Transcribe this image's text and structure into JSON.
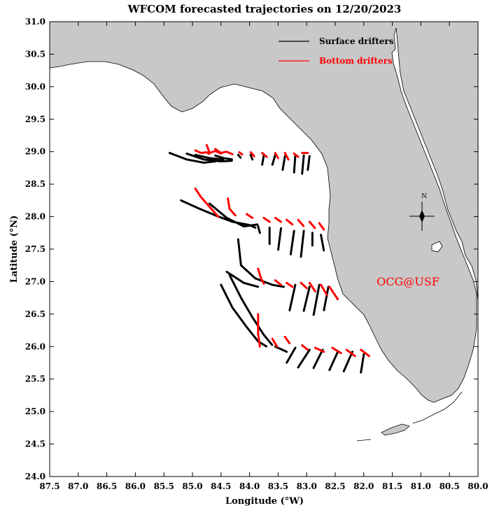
{
  "title": "WFCOM forecasted trajectories on 12/20/2023",
  "xlabel": "Longitude (°W)",
  "ylabel": "Latitude (°N)",
  "x_ticks": [
    "87.5",
    "87.0",
    "86.5",
    "86.0",
    "85.5",
    "85.0",
    "84.5",
    "84.0",
    "83.5",
    "83.0",
    "82.5",
    "82.0",
    "81.5",
    "81.0",
    "80.5",
    "80.0"
  ],
  "y_ticks": [
    "31.0",
    "30.5",
    "30.0",
    "29.5",
    "29.0",
    "28.5",
    "28.0",
    "27.5",
    "27.0",
    "26.5",
    "26.0",
    "25.5",
    "25.0",
    "24.5",
    "24.0"
  ],
  "legend": {
    "surface": {
      "label": "Surface drifters",
      "color": "#000000"
    },
    "bottom": {
      "label": "Bottom drifters",
      "color": "#ff0000"
    }
  },
  "credit": "OCG@USF",
  "compass": "N",
  "colors": {
    "land": "#c8c8c8",
    "water": "#ffffff",
    "accent": "#ff0000"
  },
  "chart_data": {
    "type": "map-trajectories",
    "xlim": [
      -87.5,
      -80.0
    ],
    "ylim": [
      24.0,
      31.0
    ],
    "surface_tracks": [
      [
        [
          -85.4,
          28.98
        ],
        [
          -85.1,
          28.88
        ],
        [
          -84.8,
          28.83
        ],
        [
          -84.6,
          28.85
        ]
      ],
      [
        [
          -85.1,
          28.97
        ],
        [
          -84.8,
          28.88
        ],
        [
          -84.5,
          28.85
        ],
        [
          -84.3,
          28.86
        ]
      ],
      [
        [
          -84.95,
          28.95
        ],
        [
          -84.7,
          28.9
        ],
        [
          -84.45,
          28.88
        ]
      ],
      [
        [
          -84.6,
          28.94
        ],
        [
          -84.45,
          28.9
        ],
        [
          -84.3,
          28.88
        ]
      ],
      [
        [
          -84.2,
          28.95
        ],
        [
          -84.15,
          28.9
        ]
      ],
      [
        [
          -83.98,
          28.95
        ],
        [
          -83.95,
          28.88
        ]
      ],
      [
        [
          -83.75,
          28.94
        ],
        [
          -83.78,
          28.8
        ]
      ],
      [
        [
          -83.55,
          28.95
        ],
        [
          -83.6,
          28.8
        ]
      ],
      [
        [
          -83.38,
          28.93
        ],
        [
          -83.42,
          28.72
        ]
      ],
      [
        [
          -83.2,
          28.93
        ],
        [
          -83.22,
          28.68
        ]
      ],
      [
        [
          -83.05,
          28.94
        ],
        [
          -83.08,
          28.66
        ]
      ],
      [
        [
          -82.95,
          28.93
        ],
        [
          -82.98,
          28.72
        ]
      ],
      [
        [
          -85.2,
          28.25
        ],
        [
          -84.9,
          28.13
        ],
        [
          -84.6,
          28.02
        ],
        [
          -84.3,
          27.92
        ],
        [
          -84.0,
          27.87
        ],
        [
          -83.9,
          27.83
        ]
      ],
      [
        [
          -84.7,
          28.2
        ],
        [
          -84.4,
          27.98
        ],
        [
          -84.1,
          27.85
        ],
        [
          -83.85,
          27.88
        ]
      ],
      [
        [
          -83.85,
          27.85
        ],
        [
          -83.82,
          27.75
        ]
      ],
      [
        [
          -83.65,
          27.83
        ],
        [
          -83.65,
          27.58
        ]
      ],
      [
        [
          -83.45,
          27.82
        ],
        [
          -83.5,
          27.48
        ]
      ],
      [
        [
          -83.22,
          27.78
        ],
        [
          -83.28,
          27.42
        ]
      ],
      [
        [
          -83.05,
          27.78
        ],
        [
          -83.1,
          27.38
        ]
      ],
      [
        [
          -82.9,
          27.75
        ],
        [
          -82.9,
          27.55
        ]
      ],
      [
        [
          -82.75,
          27.72
        ],
        [
          -82.7,
          27.48
        ]
      ],
      [
        [
          -84.2,
          27.65
        ],
        [
          -84.15,
          27.25
        ],
        [
          -83.9,
          27.05
        ],
        [
          -83.6,
          26.95
        ],
        [
          -83.4,
          26.92
        ]
      ],
      [
        [
          -84.4,
          27.15
        ],
        [
          -84.1,
          26.98
        ],
        [
          -83.85,
          26.92
        ]
      ],
      [
        [
          -83.2,
          26.95
        ],
        [
          -83.3,
          26.55
        ]
      ],
      [
        [
          -82.95,
          26.92
        ],
        [
          -83.05,
          26.55
        ]
      ],
      [
        [
          -82.78,
          26.95
        ],
        [
          -82.88,
          26.48
        ]
      ],
      [
        [
          -82.62,
          26.92
        ],
        [
          -82.7,
          26.55
        ]
      ],
      [
        [
          -84.5,
          26.95
        ],
        [
          -84.3,
          26.6
        ],
        [
          -84.05,
          26.3
        ],
        [
          -83.85,
          26.08
        ],
        [
          -83.7,
          26.0
        ]
      ],
      [
        [
          -84.35,
          27.1
        ],
        [
          -84.15,
          26.75
        ],
        [
          -83.95,
          26.45
        ],
        [
          -83.75,
          26.18
        ],
        [
          -83.6,
          26.02
        ]
      ],
      [
        [
          -83.55,
          26.0
        ],
        [
          -83.35,
          25.92
        ]
      ],
      [
        [
          -83.2,
          25.98
        ],
        [
          -83.35,
          25.75
        ]
      ],
      [
        [
          -82.95,
          25.95
        ],
        [
          -83.15,
          25.68
        ]
      ],
      [
        [
          -82.72,
          25.95
        ],
        [
          -82.88,
          25.67
        ]
      ],
      [
        [
          -82.45,
          25.93
        ],
        [
          -82.6,
          25.64
        ]
      ],
      [
        [
          -82.2,
          25.92
        ],
        [
          -82.35,
          25.62
        ]
      ],
      [
        [
          -82.0,
          25.88
        ],
        [
          -82.05,
          25.6
        ]
      ]
    ],
    "bottom_tracks": [
      [
        [
          -84.95,
          29.02
        ],
        [
          -84.85,
          28.98
        ],
        [
          -84.75,
          28.99
        ],
        [
          -84.7,
          28.96
        ]
      ],
      [
        [
          -84.75,
          29.1
        ],
        [
          -84.7,
          28.98
        ],
        [
          -84.6,
          29.01
        ],
        [
          -84.5,
          28.97
        ]
      ],
      [
        [
          -84.6,
          29.04
        ],
        [
          -84.5,
          28.98
        ],
        [
          -84.4,
          29.0
        ]
      ],
      [
        [
          -84.38,
          28.99
        ],
        [
          -84.3,
          28.96
        ]
      ],
      [
        [
          -84.18,
          28.99
        ],
        [
          -84.12,
          28.95
        ]
      ],
      [
        [
          -83.98,
          28.99
        ],
        [
          -83.92,
          28.93
        ]
      ],
      [
        [
          -83.78,
          28.98
        ],
        [
          -83.7,
          28.92
        ]
      ],
      [
        [
          -83.55,
          28.98
        ],
        [
          -83.5,
          28.9
        ]
      ],
      [
        [
          -83.38,
          28.98
        ],
        [
          -83.32,
          28.88
        ]
      ],
      [
        [
          -83.22,
          28.97
        ],
        [
          -83.15,
          28.92
        ]
      ],
      [
        [
          -83.08,
          28.98
        ],
        [
          -82.98,
          28.98
        ]
      ],
      [
        [
          -84.95,
          28.43
        ],
        [
          -84.85,
          28.3
        ],
        [
          -84.7,
          28.15
        ],
        [
          -84.55,
          28.0
        ]
      ],
      [
        [
          -84.38,
          28.28
        ],
        [
          -84.35,
          28.12
        ],
        [
          -84.25,
          28.02
        ]
      ],
      [
        [
          -84.05,
          28.04
        ],
        [
          -83.95,
          27.98
        ]
      ],
      [
        [
          -83.75,
          27.98
        ],
        [
          -83.65,
          27.92
        ]
      ],
      [
        [
          -83.55,
          27.98
        ],
        [
          -83.45,
          27.92
        ]
      ],
      [
        [
          -83.35,
          27.95
        ],
        [
          -83.25,
          27.88
        ]
      ],
      [
        [
          -83.15,
          27.95
        ],
        [
          -83.05,
          27.85
        ]
      ],
      [
        [
          -82.95,
          27.92
        ],
        [
          -82.85,
          27.82
        ]
      ],
      [
        [
          -82.78,
          27.9
        ],
        [
          -82.7,
          27.8
        ]
      ],
      [
        [
          -83.85,
          27.2
        ],
        [
          -83.8,
          27.05
        ],
        [
          -83.75,
          26.97
        ]
      ],
      [
        [
          -83.55,
          27.02
        ],
        [
          -83.45,
          26.95
        ]
      ],
      [
        [
          -83.35,
          26.98
        ],
        [
          -83.25,
          26.92
        ]
      ],
      [
        [
          -83.1,
          26.98
        ],
        [
          -83.0,
          26.9
        ]
      ],
      [
        [
          -82.95,
          26.98
        ],
        [
          -82.85,
          26.85
        ]
      ],
      [
        [
          -82.75,
          26.95
        ],
        [
          -82.65,
          26.8
        ]
      ],
      [
        [
          -82.6,
          26.92
        ],
        [
          -82.45,
          26.72
        ]
      ],
      [
        [
          -83.85,
          26.5
        ],
        [
          -83.85,
          26.2
        ],
        [
          -83.82,
          26.0
        ]
      ],
      [
        [
          -83.6,
          26.12
        ],
        [
          -83.52,
          26.0
        ]
      ],
      [
        [
          -83.38,
          26.15
        ],
        [
          -83.3,
          26.05
        ]
      ],
      [
        [
          -83.08,
          26.02
        ],
        [
          -82.98,
          25.95
        ]
      ],
      [
        [
          -82.85,
          25.98
        ],
        [
          -82.7,
          25.92
        ]
      ],
      [
        [
          -82.55,
          25.98
        ],
        [
          -82.4,
          25.9
        ]
      ],
      [
        [
          -82.3,
          25.95
        ],
        [
          -82.15,
          25.85
        ]
      ],
      [
        [
          -82.05,
          25.95
        ],
        [
          -81.9,
          25.85
        ]
      ]
    ]
  }
}
